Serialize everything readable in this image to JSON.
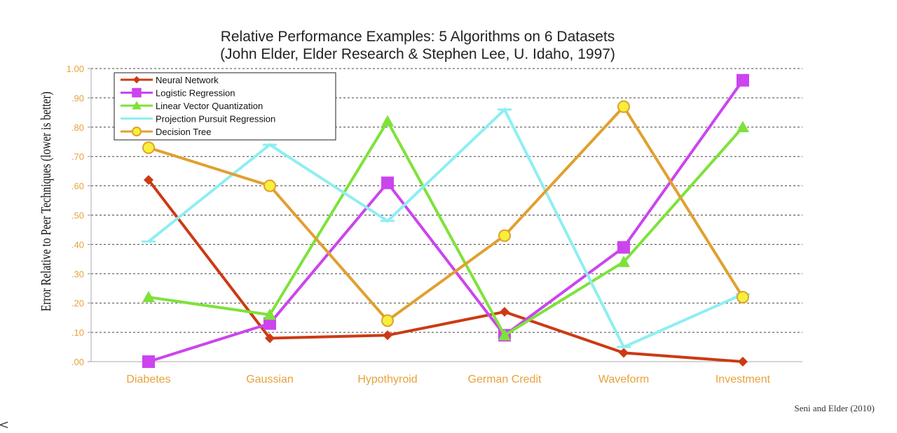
{
  "chart_data": {
    "type": "line",
    "title": "Relative Performance Examples:  5 Algorithms on 6 Datasets",
    "subtitle": "(John Elder, Elder Research & Stephen Lee, U. Idaho, 1997)",
    "xlabel": "",
    "ylabel": "Error Relative to Peer Techniques (lower is better)",
    "ylim": [
      0,
      1.0
    ],
    "yticks": [
      ".00",
      ".10",
      ".20",
      ".30",
      ".40",
      ".50",
      ".60",
      ".70",
      ".80",
      ".90",
      "1.00"
    ],
    "categories": [
      "Diabetes",
      "Gaussian",
      "Hypothyroid",
      "German Credit",
      "Waveform",
      "Investment"
    ],
    "grid": "horizontal dashed",
    "legend_position": "top-left",
    "series": [
      {
        "name": "Neural Network",
        "color": "#cc3a14",
        "marker": "diamond",
        "values": [
          0.62,
          0.08,
          0.09,
          0.17,
          0.03,
          0.0
        ]
      },
      {
        "name": "Logistic Regression",
        "color": "#cc44ee",
        "marker": "square",
        "values": [
          0.0,
          0.13,
          0.61,
          0.09,
          0.39,
          0.96
        ]
      },
      {
        "name": "Linear Vector Quantization",
        "color": "#7ee23a",
        "marker": "triangle",
        "values": [
          0.22,
          0.16,
          0.82,
          0.09,
          0.34,
          0.8
        ]
      },
      {
        "name": "Projection Pursuit Regression",
        "color": "#8eeef2",
        "marker": "dash",
        "values": [
          0.41,
          0.74,
          0.48,
          0.86,
          0.05,
          0.23
        ]
      },
      {
        "name": "Decision Tree",
        "color": "#e0a030",
        "marker": "circle",
        "values": [
          0.73,
          0.6,
          0.14,
          0.43,
          0.87,
          0.22
        ]
      }
    ]
  },
  "footer": {
    "credit": "Seni and Elder (2010)",
    "corner_glyph": "<"
  }
}
